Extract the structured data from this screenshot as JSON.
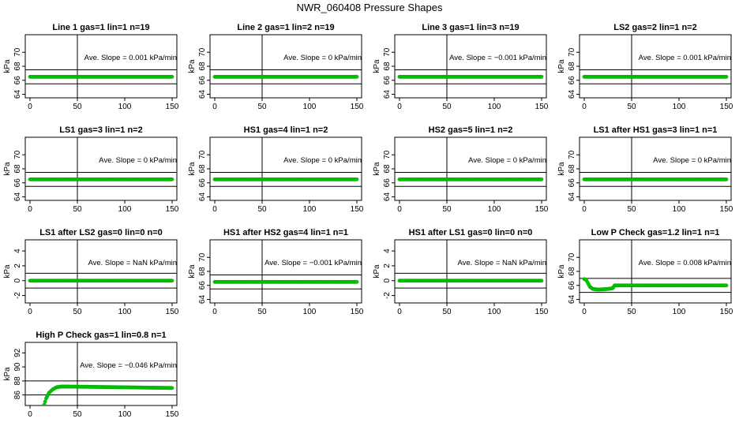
{
  "title": "NWR_060408  Pressure Shapes",
  "colors": {
    "points": "#00cc00",
    "frame": "#000000",
    "background": "#ffffff"
  },
  "ylabel": "kPa",
  "xticks": [
    "0",
    "50",
    "100",
    "150"
  ],
  "chart_data": [
    {
      "type": "scatter",
      "title": "Line 1 gas=1 lin=1 n=19",
      "annotation": "Ave. Slope =  0.001  kPa/min",
      "ylim": [
        63.5,
        72.5
      ],
      "yticks": [
        64,
        66,
        68,
        70
      ],
      "hlines": [
        67.5,
        65.5
      ],
      "vline": 50,
      "xlim": [
        -5,
        155
      ],
      "series": [
        {
          "x_start": 0,
          "x_end": 150,
          "y": 66.5
        }
      ]
    },
    {
      "type": "scatter",
      "title": "Line 2 gas=1 lin=2 n=19",
      "annotation": "Ave. Slope =  0  kPa/min",
      "ylim": [
        63.5,
        72.5
      ],
      "yticks": [
        64,
        66,
        68,
        70
      ],
      "hlines": [
        67.5,
        65.5
      ],
      "vline": 50,
      "xlim": [
        -5,
        155
      ],
      "series": [
        {
          "x_start": 0,
          "x_end": 150,
          "y": 66.5
        }
      ]
    },
    {
      "type": "scatter",
      "title": "Line 3 gas=1 lin=3 n=19",
      "annotation": "Ave. Slope =  −0.001  kPa/min",
      "ylim": [
        63.5,
        72.5
      ],
      "yticks": [
        64,
        66,
        68,
        70
      ],
      "hlines": [
        67.5,
        65.5
      ],
      "vline": 50,
      "xlim": [
        -5,
        155
      ],
      "series": [
        {
          "x_start": 0,
          "x_end": 150,
          "y": 66.5
        }
      ]
    },
    {
      "type": "scatter",
      "title": "LS2 gas=2 lin=1 n=2",
      "annotation": "Ave. Slope =  0.001  kPa/min",
      "ylim": [
        63.5,
        72.5
      ],
      "yticks": [
        64,
        66,
        68,
        70
      ],
      "hlines": [
        67.5,
        65.5
      ],
      "vline": 50,
      "xlim": [
        -5,
        155
      ],
      "series": [
        {
          "x_start": 0,
          "x_end": 150,
          "y": 66.5
        }
      ]
    },
    {
      "type": "scatter",
      "title": "LS1 gas=3 lin=1 n=2",
      "annotation": "Ave. Slope =  0  kPa/min",
      "ylim": [
        63.5,
        72.5
      ],
      "yticks": [
        64,
        66,
        68,
        70
      ],
      "hlines": [
        67.5,
        65.5
      ],
      "vline": 50,
      "xlim": [
        -5,
        155
      ],
      "series": [
        {
          "x_start": 0,
          "x_end": 150,
          "y": 66.5
        }
      ]
    },
    {
      "type": "scatter",
      "title": "HS1 gas=4 lin=1 n=2",
      "annotation": "Ave. Slope =  0  kPa/min",
      "ylim": [
        63.5,
        72.5
      ],
      "yticks": [
        64,
        66,
        68,
        70
      ],
      "hlines": [
        67.5,
        65.5
      ],
      "vline": 50,
      "xlim": [
        -5,
        155
      ],
      "series": [
        {
          "x_start": 0,
          "x_end": 150,
          "y": 66.5
        }
      ]
    },
    {
      "type": "scatter",
      "title": "HS2 gas=5 lin=1 n=2",
      "annotation": "Ave. Slope =  0  kPa/min",
      "ylim": [
        63.5,
        72.5
      ],
      "yticks": [
        64,
        66,
        68,
        70
      ],
      "hlines": [
        67.5,
        65.5
      ],
      "vline": 50,
      "xlim": [
        -5,
        155
      ],
      "series": [
        {
          "x_start": 0,
          "x_end": 150,
          "y": 66.5
        }
      ]
    },
    {
      "type": "scatter",
      "title": "LS1 after HS1 gas=3 lin=1 n=1",
      "annotation": "Ave. Slope =  0  kPa/min",
      "ylim": [
        63.5,
        72.5
      ],
      "yticks": [
        64,
        66,
        68,
        70
      ],
      "hlines": [
        67.5,
        65.5
      ],
      "vline": 50,
      "xlim": [
        -5,
        155
      ],
      "series": [
        {
          "x_start": 0,
          "x_end": 150,
          "y": 66.5
        }
      ]
    },
    {
      "type": "scatter",
      "title": "LS1 after LS2 gas=0 lin=0 n=0",
      "annotation": "Ave. Slope =  NaN  kPa/min",
      "ylim": [
        -3,
        5.5
      ],
      "yticks": [
        -2,
        0,
        2,
        4
      ],
      "hlines": [
        1,
        -1
      ],
      "vline": 50,
      "xlim": [
        -5,
        155
      ],
      "series": [
        {
          "x_start": 0,
          "x_end": 150,
          "y": 0
        }
      ]
    },
    {
      "type": "scatter",
      "title": "HS1 after HS2 gas=4 lin=1 n=1",
      "annotation": "Ave. Slope =  −0.001  kPa/min",
      "ylim": [
        63.5,
        72.5
      ],
      "yticks": [
        64,
        66,
        68,
        70
      ],
      "hlines": [
        67.5,
        65.5
      ],
      "vline": 50,
      "xlim": [
        -5,
        155
      ],
      "series": [
        {
          "x_start": 0,
          "x_end": 150,
          "y": 66.5
        }
      ]
    },
    {
      "type": "scatter",
      "title": "HS1 after LS1 gas=0 lin=0 n=0",
      "annotation": "Ave. Slope =  NaN  kPa/min",
      "ylim": [
        -3,
        5.5
      ],
      "yticks": [
        -2,
        0,
        2,
        4
      ],
      "hlines": [
        1,
        -1
      ],
      "vline": 50,
      "xlim": [
        -5,
        155
      ],
      "series": [
        {
          "x_start": 0,
          "x_end": 150,
          "y": 0
        }
      ]
    },
    {
      "type": "scatter",
      "title": "Low P Check gas=1.2 lin=1 n=1",
      "annotation": "Ave. Slope =  0.008  kPa/min",
      "ylim": [
        63.5,
        72.5
      ],
      "yticks": [
        64,
        66,
        68,
        70
      ],
      "hlines": [
        67,
        65
      ],
      "vline": 50,
      "xlim": [
        -5,
        155
      ],
      "series": [
        {
          "segments": [
            [
              0,
              66.9
            ],
            [
              2,
              66.8
            ],
            [
              4,
              66.3
            ],
            [
              6,
              65.8
            ],
            [
              9,
              65.5
            ],
            [
              15,
              65.4
            ],
            [
              25,
              65.5
            ],
            [
              30,
              65.6
            ],
            [
              32,
              66.0
            ],
            [
              40,
              66.0
            ],
            [
              150,
              66.0
            ]
          ]
        }
      ]
    },
    {
      "type": "scatter",
      "title": "High P Check gas=1 lin=0.8 n=1",
      "annotation": "Ave. Slope =  −0.046  kPa/min",
      "ylim": [
        84.5,
        93.5
      ],
      "yticks": [
        86,
        88,
        90,
        92
      ],
      "hlines": [
        88,
        86
      ],
      "vline": 50,
      "xlim": [
        -5,
        155
      ],
      "series": [
        {
          "segments": [
            [
              15,
              84.6
            ],
            [
              17,
              85.5
            ],
            [
              20,
              86.3
            ],
            [
              24,
              86.8
            ],
            [
              28,
              87.1
            ],
            [
              33,
              87.2
            ],
            [
              40,
              87.2
            ],
            [
              150,
              87.0
            ]
          ]
        }
      ]
    }
  ]
}
